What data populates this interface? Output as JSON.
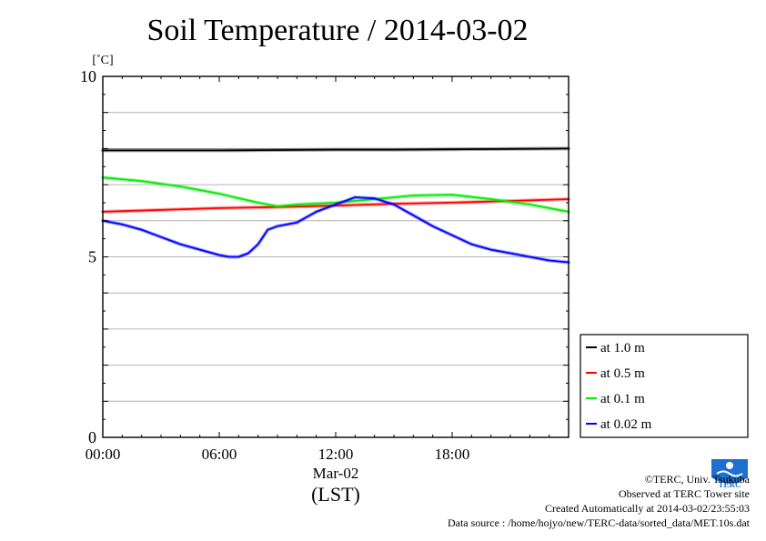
{
  "chart_data": {
    "type": "line",
    "title": "Soil Temperature / 2014-03-02",
    "ylabel": "[˚C]",
    "xlabel": "(LST)",
    "date_label": "Mar-02",
    "ylim": [
      0,
      10
    ],
    "yticks": [
      0,
      5,
      10
    ],
    "xlim": [
      0,
      24
    ],
    "xticks": [
      0,
      6,
      12,
      18
    ],
    "xtick_labels": [
      "00:00",
      "06:00",
      "12:00",
      "18:00"
    ],
    "grid": true,
    "legend_position": "lower-right, outside plot",
    "series": [
      {
        "name": "at 1.0 m",
        "color": "#000000",
        "x": [
          0,
          3,
          6,
          9,
          12,
          15,
          18,
          21,
          24
        ],
        "values": [
          7.95,
          7.95,
          7.95,
          7.96,
          7.97,
          7.97,
          7.98,
          7.99,
          8.0
        ]
      },
      {
        "name": "at 0.5 m",
        "color": "#ff0000",
        "x": [
          0,
          3,
          6,
          9,
          12,
          15,
          18,
          21,
          24
        ],
        "values": [
          6.25,
          6.3,
          6.35,
          6.38,
          6.42,
          6.47,
          6.5,
          6.55,
          6.6
        ]
      },
      {
        "name": "at 0.1 m",
        "color": "#00ee00",
        "x": [
          0,
          2,
          4,
          6,
          8,
          9,
          10,
          12,
          14,
          16,
          18,
          20,
          22,
          24
        ],
        "values": [
          7.2,
          7.1,
          6.95,
          6.75,
          6.5,
          6.4,
          6.45,
          6.5,
          6.6,
          6.7,
          6.72,
          6.6,
          6.45,
          6.25
        ]
      },
      {
        "name": "at 0.02 m",
        "color": "#0000ff",
        "x": [
          0,
          1,
          2,
          3,
          4,
          5,
          6,
          6.5,
          7,
          7.5,
          8,
          8.5,
          9,
          10,
          11,
          12,
          13,
          14,
          15,
          16,
          17,
          18,
          19,
          20,
          21,
          22,
          23,
          24
        ],
        "values": [
          6.0,
          5.9,
          5.75,
          5.55,
          5.35,
          5.2,
          5.05,
          5.0,
          5.0,
          5.1,
          5.35,
          5.75,
          5.85,
          5.95,
          6.25,
          6.45,
          6.65,
          6.62,
          6.45,
          6.15,
          5.85,
          5.6,
          5.35,
          5.2,
          5.1,
          5.0,
          4.9,
          4.85
        ]
      }
    ]
  },
  "credits": {
    "copyright": "©TERC, Univ. Tsukuba",
    "observed": "Observed at TERC Tower site",
    "created": "Created Automatically at 2014-03-02/23:55:03",
    "source": "Data source : /home/hojyo/new/TERC-data/sorted_data/MET.10s.dat"
  },
  "logo": {
    "text": "TERC",
    "color": "#1e6fd0"
  }
}
